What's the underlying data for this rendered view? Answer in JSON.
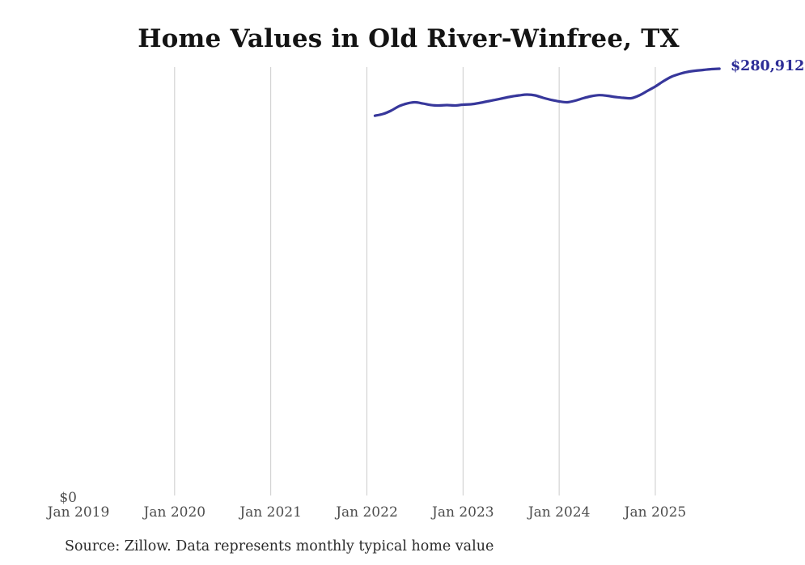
{
  "page": {
    "background": "#ffffff"
  },
  "chart_data": {
    "type": "line",
    "title": "Home Values in Old River-Winfree, TX",
    "source_note": "Source: Zillow. Data represents monthly typical home value",
    "end_label": "$280,912",
    "y_zero_label": "$0",
    "axis": {
      "x_start": "Jan 2019",
      "x_end": "Sep 2025",
      "y_min": 0,
      "grid": "vertical-only",
      "legend": "none"
    },
    "x_ticks": [
      {
        "label": "Jan 2019",
        "gridline": false
      },
      {
        "label": "Jan 2020",
        "gridline": true
      },
      {
        "label": "Jan 2021",
        "gridline": true
      },
      {
        "label": "Jan 2022",
        "gridline": true
      },
      {
        "label": "Jan 2023",
        "gridline": true
      },
      {
        "label": "Jan 2024",
        "gridline": true
      },
      {
        "label": "Jan 2025",
        "gridline": true
      }
    ],
    "series": [
      {
        "name": "Monthly typical home value",
        "start": "2022-02",
        "interval": "monthly",
        "values": [
          249950,
          251100,
          253250,
          256200,
          258000,
          258850,
          258000,
          257000,
          256700,
          256950,
          256700,
          257250,
          257500,
          258300,
          259350,
          260400,
          261500,
          262550,
          263350,
          263900,
          263350,
          261750,
          260400,
          259350,
          258850,
          259900,
          261500,
          262800,
          263500,
          263100,
          262300,
          261750,
          261500,
          263350,
          266300,
          269200,
          272650,
          275600,
          277450,
          278800,
          279600,
          280100,
          280650,
          280912
        ]
      }
    ],
    "colors": {
      "line": "#37379b",
      "end_label": "#2d2d96",
      "grid": "#cbcbcb",
      "tick_label": "#4d4d4d",
      "title": "#141414",
      "source": "#2b2b2b"
    }
  }
}
